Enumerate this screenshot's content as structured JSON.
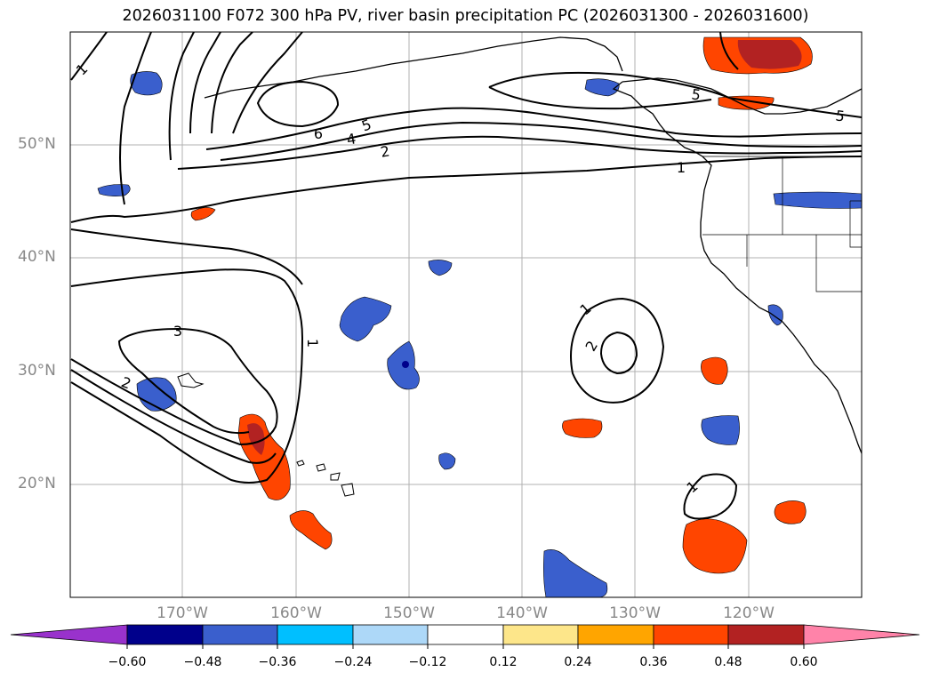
{
  "title": "2026031100 F072 300 hPa PV, river basin precipitation PC (2026031300 - 2026031600)",
  "lat_labels": [
    "50°N",
    "40°N",
    "30°N",
    "20°N"
  ],
  "lon_labels": [
    "170°W",
    "160°W",
    "150°W",
    "140°W",
    "130°W",
    "120°W"
  ],
  "contour_labels": {
    "l1": "1",
    "l6": "6",
    "l5a": "5",
    "l4": "4",
    "l2a": "2",
    "l5b": "5",
    "l5c": "5",
    "l1b": "1",
    "l3": "3",
    "l2b": "2",
    "l1c": "1",
    "l1d": "1",
    "l2c": "2",
    "l1e": "1"
  },
  "colorbar": {
    "ticks": [
      "−0.60",
      "−0.48",
      "−0.36",
      "−0.24",
      "−0.12",
      "0.12",
      "0.24",
      "0.36",
      "0.48",
      "0.60"
    ],
    "colors": [
      "#9932cc",
      "#00008b",
      "#3a5fcd",
      "#00bfff",
      "#add8f8",
      "#ffffff",
      "#fde68a",
      "#ffa500",
      "#ff4500",
      "#b22222",
      "#ff83a9"
    ]
  },
  "colors": {
    "contour": "#000000",
    "grid": "#b0b0b0",
    "coast": "#000000"
  }
}
